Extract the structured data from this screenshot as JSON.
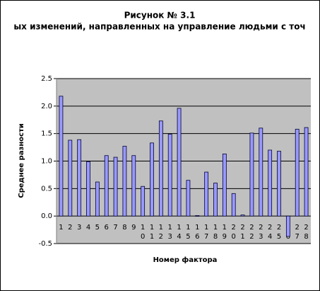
{
  "chart_data": {
    "type": "bar",
    "title": "Рисунок № 3.1",
    "subtitle": "ых изменений, направленных на управление людьми с точ",
    "x_label": "Номер фактора",
    "y_label": "Среднее разности",
    "categories": [
      "1",
      "2",
      "3",
      "4",
      "5",
      "6",
      "7",
      "8",
      "9",
      "10",
      "11",
      "12",
      "13",
      "14",
      "15",
      "16",
      "17",
      "18",
      "19",
      "20",
      "21",
      "22",
      "23",
      "24",
      "25",
      "26",
      "27",
      "28"
    ],
    "values": [
      2.18,
      1.38,
      1.39,
      0.99,
      0.62,
      1.1,
      1.07,
      1.27,
      1.1,
      0.54,
      1.33,
      1.73,
      1.49,
      1.96,
      0.65,
      0.01,
      0.8,
      0.6,
      1.13,
      0.41,
      0.02,
      1.51,
      1.6,
      1.2,
      1.18,
      -0.37,
      1.58,
      1.61
    ],
    "color": "#9999ff",
    "ylim": [
      -0.5,
      2.5
    ],
    "yticks": [
      -0.5,
      {
        "value": 0,
        "label": "0.0"
      },
      0.5,
      {
        "value": 1,
        "label": "1.0"
      },
      1.5,
      {
        "value": 2,
        "label": "2.0"
      },
      2.5
    ],
    "grid": true
  }
}
